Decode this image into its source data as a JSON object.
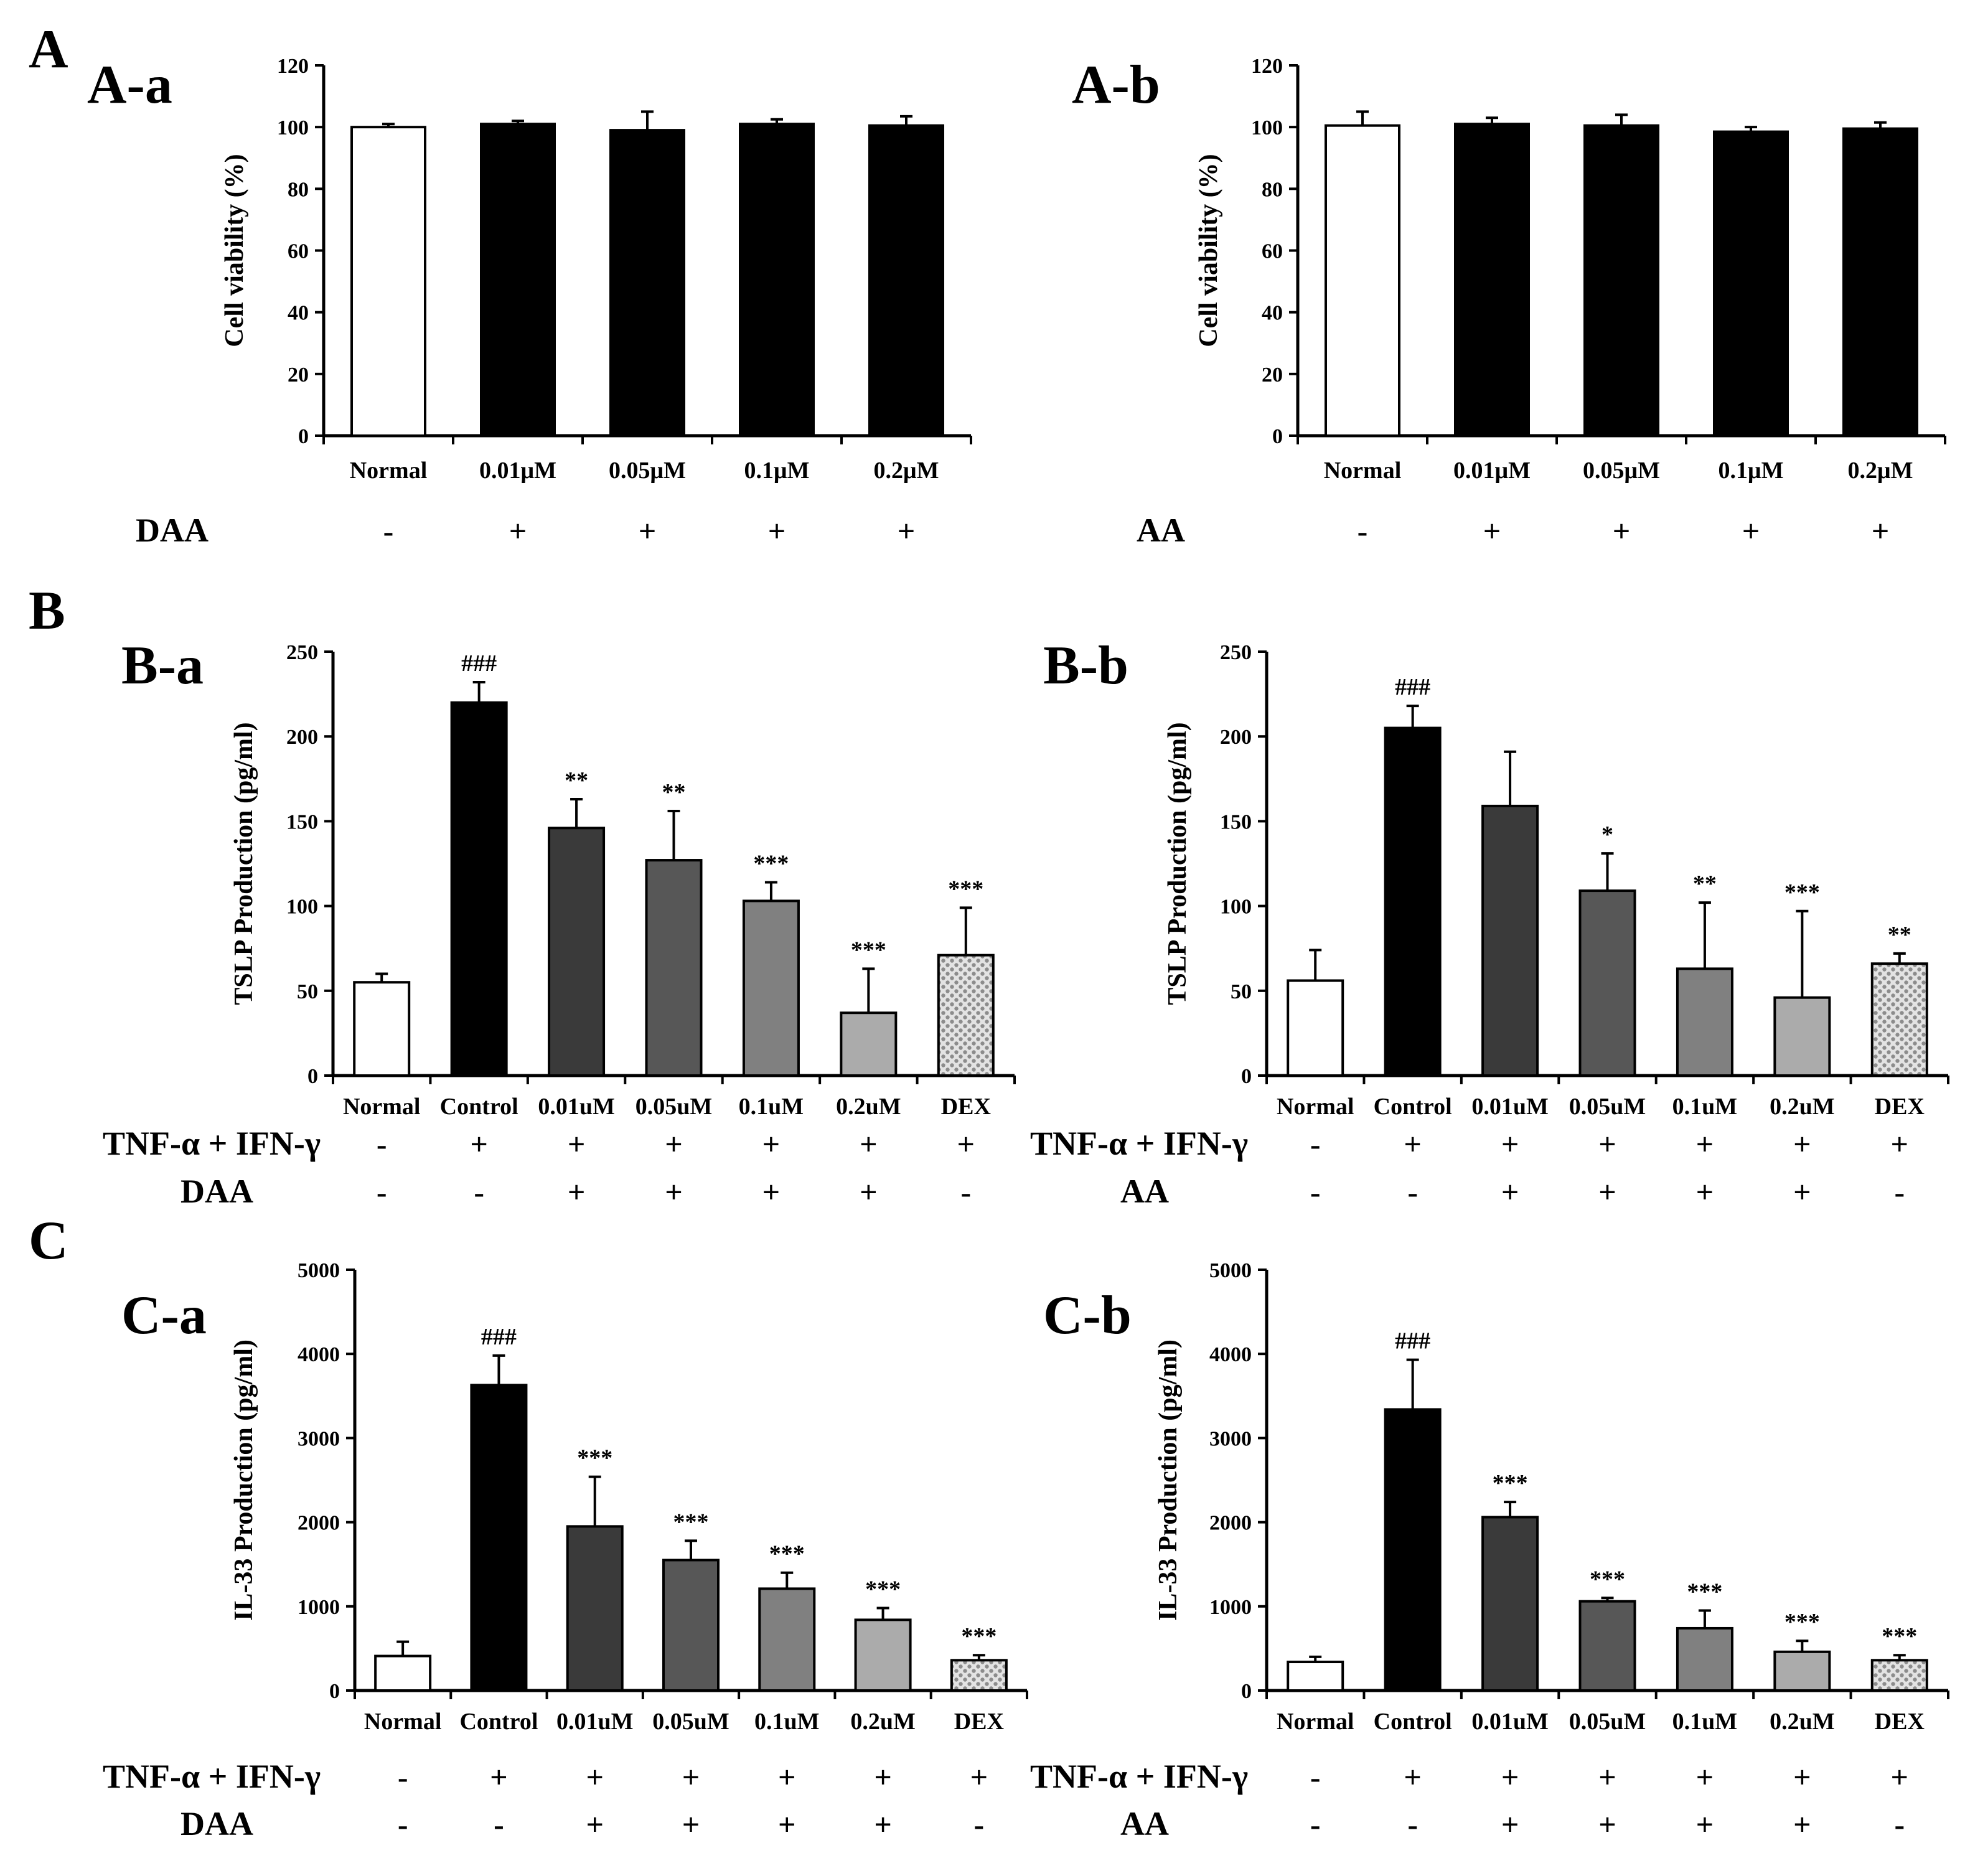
{
  "figure": {
    "sections": [
      "A",
      "B",
      "C"
    ],
    "colors": {
      "normal": "#ffffff",
      "control": "#000000",
      "treatment_A": "#000000",
      "dose1": "#3a3a3a",
      "dose2": "#575757",
      "dose3": "#808080",
      "dose4": "#ababab",
      "dex_pattern": "#c9c9c9"
    }
  },
  "chart_data": [
    {
      "id": "A-a",
      "type": "bar",
      "panel_label": "A-a",
      "ylabel": "Cell viability (%)",
      "ylim": [
        0,
        120
      ],
      "yticks": [
        0,
        20,
        40,
        60,
        80,
        100,
        120
      ],
      "categories": [
        "Normal",
        "0.01μM",
        "0.05μM",
        "0.1μM",
        "0.2μM"
      ],
      "values": [
        100,
        101,
        99,
        101,
        100.5
      ],
      "errors": [
        1,
        1,
        6,
        1.5,
        3
      ],
      "colors": [
        "normal",
        "treatment_A",
        "treatment_A",
        "treatment_A",
        "treatment_A"
      ],
      "significance": [
        "",
        "",
        "",
        "",
        ""
      ],
      "treatment_rows": [
        {
          "label": "DAA",
          "signs": [
            "-",
            "+",
            "+",
            "+",
            "+"
          ]
        }
      ]
    },
    {
      "id": "A-b",
      "type": "bar",
      "panel_label": "A-b",
      "ylabel": "Cell viability (%)",
      "ylim": [
        0,
        120
      ],
      "yticks": [
        0,
        20,
        40,
        60,
        80,
        100,
        120
      ],
      "categories": [
        "Normal",
        "0.01μM",
        "0.05μM",
        "0.1μM",
        "0.2μM"
      ],
      "values": [
        100.5,
        101,
        100.5,
        98.5,
        99.5
      ],
      "errors": [
        4.5,
        2,
        3.5,
        1.5,
        2
      ],
      "colors": [
        "normal",
        "treatment_A",
        "treatment_A",
        "treatment_A",
        "treatment_A"
      ],
      "significance": [
        "",
        "",
        "",
        "",
        ""
      ],
      "treatment_rows": [
        {
          "label": "AA",
          "signs": [
            "-",
            "+",
            "+",
            "+",
            "+"
          ]
        }
      ]
    },
    {
      "id": "B-a",
      "type": "bar",
      "panel_label": "B-a",
      "ylabel": "TSLP Production (pg/ml)",
      "ylim": [
        0,
        250
      ],
      "yticks": [
        0,
        50,
        100,
        150,
        200,
        250
      ],
      "categories": [
        "Normal",
        "Control",
        "0.01uM",
        "0.05uM",
        "0.1uM",
        "0.2uM",
        "DEX"
      ],
      "values": [
        55,
        220,
        146,
        127,
        103,
        37,
        71
      ],
      "errors": [
        5,
        12,
        17,
        29,
        11,
        26,
        28
      ],
      "colors": [
        "normal",
        "control",
        "dose1",
        "dose2",
        "dose3",
        "dose4",
        "dex"
      ],
      "significance": [
        "",
        "###",
        "**",
        "**",
        "***",
        "***",
        "***"
      ],
      "treatment_rows": [
        {
          "label": "TNF-α + IFN-γ",
          "signs": [
            "-",
            "+",
            "+",
            "+",
            "+",
            "+",
            "+"
          ]
        },
        {
          "label": "DAA",
          "signs": [
            "-",
            "-",
            "+",
            "+",
            "+",
            "+",
            "-"
          ]
        }
      ]
    },
    {
      "id": "B-b",
      "type": "bar",
      "panel_label": "B-b",
      "ylabel": "TSLP Production (pg/ml)",
      "ylim": [
        0,
        250
      ],
      "yticks": [
        0,
        50,
        100,
        150,
        200,
        250
      ],
      "categories": [
        "Normal",
        "Control",
        "0.01uM",
        "0.05uM",
        "0.1uM",
        "0.2uM",
        "DEX"
      ],
      "values": [
        56,
        205,
        159,
        109,
        63,
        46,
        66
      ],
      "errors": [
        18,
        13,
        32,
        22,
        39,
        51,
        6
      ],
      "colors": [
        "normal",
        "control",
        "dose1",
        "dose2",
        "dose3",
        "dose4",
        "dex"
      ],
      "significance": [
        "",
        "###",
        "",
        "*",
        "**",
        "***",
        "**"
      ],
      "treatment_rows": [
        {
          "label": "TNF-α + IFN-γ",
          "signs": [
            "-",
            "+",
            "+",
            "+",
            "+",
            "+",
            "+"
          ]
        },
        {
          "label": "AA",
          "signs": [
            "-",
            "-",
            "+",
            "+",
            "+",
            "+",
            "-"
          ]
        }
      ]
    },
    {
      "id": "C-a",
      "type": "bar",
      "panel_label": "C-a",
      "ylabel": "IL-33 Production (pg/ml)",
      "ylim": [
        0,
        5000
      ],
      "yticks": [
        0,
        1000,
        2000,
        3000,
        4000,
        5000
      ],
      "categories": [
        "Normal",
        "Control",
        "0.01uM",
        "0.05uM",
        "0.1uM",
        "0.2uM",
        "DEX"
      ],
      "values": [
        410,
        3630,
        1950,
        1550,
        1210,
        840,
        360
      ],
      "errors": [
        170,
        350,
        590,
        230,
        190,
        140,
        60
      ],
      "colors": [
        "normal",
        "control",
        "dose1",
        "dose2",
        "dose3",
        "dose4",
        "dex"
      ],
      "significance": [
        "",
        "###",
        "***",
        "***",
        "***",
        "***",
        "***"
      ],
      "treatment_rows": [
        {
          "label": "TNF-α + IFN-γ",
          "signs": [
            "-",
            "+",
            "+",
            "+",
            "+",
            "+",
            "+"
          ]
        },
        {
          "label": "DAA",
          "signs": [
            "-",
            "-",
            "+",
            "+",
            "+",
            "+",
            "-"
          ]
        }
      ]
    },
    {
      "id": "C-b",
      "type": "bar",
      "panel_label": "C-b",
      "ylabel": "IL-33 Production (pg/ml)",
      "ylim": [
        0,
        5000
      ],
      "yticks": [
        0,
        1000,
        2000,
        3000,
        4000,
        5000
      ],
      "categories": [
        "Normal",
        "Control",
        "0.01uM",
        "0.05uM",
        "0.1uM",
        "0.2uM",
        "DEX"
      ],
      "values": [
        340,
        3340,
        2060,
        1060,
        740,
        460,
        360
      ],
      "errors": [
        60,
        590,
        180,
        40,
        210,
        130,
        60
      ],
      "colors": [
        "normal",
        "control",
        "dose1",
        "dose2",
        "dose3",
        "dose4",
        "dex"
      ],
      "significance": [
        "",
        "###",
        "***",
        "***",
        "***",
        "***",
        "***"
      ],
      "treatment_rows": [
        {
          "label": "TNF-α + IFN-γ",
          "signs": [
            "-",
            "+",
            "+",
            "+",
            "+",
            "+",
            "+"
          ]
        },
        {
          "label": "AA",
          "signs": [
            "-",
            "-",
            "+",
            "+",
            "+",
            "+",
            "-"
          ]
        }
      ]
    }
  ]
}
